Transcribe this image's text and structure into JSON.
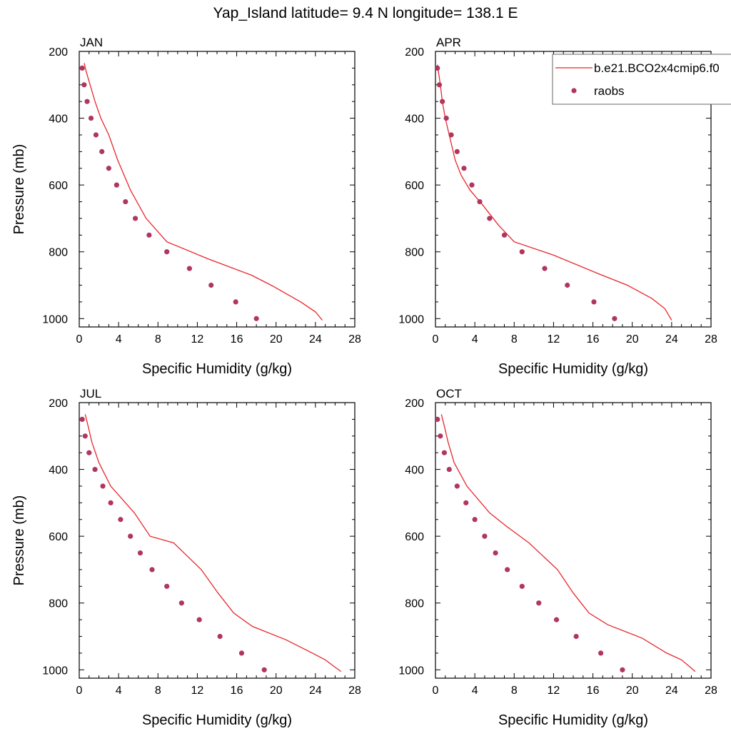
{
  "title": "Yap_Island  latitude= 9.4 N longitude= 138.1 E",
  "colors": {
    "model_line": "#e8262b",
    "obs_marker": "#b0365f",
    "axis": "#000000"
  },
  "legend": {
    "model_label": "b.e21.BCO2x4cmip6.f0",
    "obs_label": "raobs",
    "placement": "top-right"
  },
  "chart_data": [
    {
      "type": "line",
      "panel": "JAN",
      "xlabel": "Specific Humidity (g/kg)",
      "ylabel": "Pressure (mb)",
      "xlim": [
        0,
        28
      ],
      "ylim": [
        1025,
        200
      ],
      "xticks": [
        0,
        4,
        8,
        12,
        16,
        20,
        24,
        28
      ],
      "yticks": [
        200,
        400,
        600,
        800,
        1000
      ],
      "series": [
        {
          "name": "b.e21.BCO2x4cmip6.f0",
          "kind": "line",
          "x": [
            0.5,
            0.7,
            1.1,
            1.6,
            2.2,
            3.0,
            3.9,
            5.2,
            6.8,
            8.9,
            13.0,
            17.5,
            19.5,
            21.0,
            22.5,
            24.0,
            24.7
          ],
          "y": [
            235,
            260,
            300,
            350,
            400,
            450,
            525,
            615,
            700,
            770,
            820,
            870,
            900,
            925,
            950,
            980,
            1005
          ]
        },
        {
          "name": "raobs",
          "kind": "scatter",
          "x": [
            0.3,
            0.5,
            0.8,
            1.2,
            1.7,
            2.3,
            3.0,
            3.8,
            4.7,
            5.7,
            7.1,
            8.9,
            11.2,
            13.4,
            15.9,
            18.0
          ],
          "y": [
            250,
            300,
            350,
            400,
            450,
            500,
            550,
            600,
            650,
            700,
            750,
            800,
            850,
            900,
            950,
            1000
          ]
        }
      ]
    },
    {
      "type": "line",
      "panel": "APR",
      "xlabel": "Specific Humidity (g/kg)",
      "ylabel": "",
      "xlim": [
        0,
        28
      ],
      "ylim": [
        1025,
        200
      ],
      "xticks": [
        0,
        4,
        8,
        12,
        16,
        20,
        24,
        28
      ],
      "yticks": [
        200,
        400,
        600,
        800,
        1000
      ],
      "series": [
        {
          "name": "b.e21.BCO2x4cmip6.f0",
          "kind": "line",
          "x": [
            0.2,
            0.3,
            0.5,
            0.7,
            1.0,
            1.4,
            2.0,
            2.6,
            3.5,
            4.8,
            6.4,
            8.0,
            12.0,
            16.5,
            19.5,
            22.0,
            23.3,
            24.0
          ],
          "y": [
            240,
            260,
            300,
            350,
            400,
            450,
            525,
            570,
            615,
            660,
            720,
            770,
            810,
            865,
            900,
            940,
            970,
            1005
          ]
        },
        {
          "name": "raobs",
          "kind": "scatter",
          "x": [
            0.2,
            0.4,
            0.7,
            1.1,
            1.6,
            2.2,
            2.9,
            3.7,
            4.5,
            5.5,
            7.0,
            8.8,
            11.1,
            13.4,
            16.1,
            18.2
          ],
          "y": [
            250,
            300,
            350,
            400,
            450,
            500,
            550,
            600,
            650,
            700,
            750,
            800,
            850,
            900,
            950,
            1000
          ]
        }
      ]
    },
    {
      "type": "line",
      "panel": "JUL",
      "xlabel": "Specific Humidity (g/kg)",
      "ylabel": "Pressure (mb)",
      "xlim": [
        0,
        28
      ],
      "ylim": [
        1025,
        200
      ],
      "xticks": [
        0,
        4,
        8,
        12,
        16,
        20,
        24,
        28
      ],
      "yticks": [
        200,
        400,
        600,
        800,
        1000
      ],
      "series": [
        {
          "name": "b.e21.BCO2x4cmip6.f0",
          "kind": "line",
          "x": [
            0.6,
            0.9,
            1.3,
            2.0,
            3.2,
            5.6,
            7.2,
            9.6,
            12.4,
            14.1,
            15.7,
            17.6,
            21.0,
            23.7,
            25.0,
            25.9,
            26.6
          ],
          "y": [
            235,
            270,
            320,
            380,
            450,
            530,
            600,
            620,
            700,
            770,
            830,
            870,
            910,
            950,
            970,
            990,
            1005
          ]
        },
        {
          "name": "raobs",
          "kind": "scatter",
          "x": [
            0.3,
            0.6,
            1.0,
            1.6,
            2.4,
            3.2,
            4.2,
            5.2,
            6.2,
            7.4,
            8.9,
            10.4,
            12.2,
            14.3,
            16.5,
            18.8
          ],
          "y": [
            250,
            300,
            350,
            400,
            450,
            500,
            550,
            600,
            650,
            700,
            750,
            800,
            850,
            900,
            950,
            1000
          ]
        }
      ]
    },
    {
      "type": "line",
      "panel": "OCT",
      "xlabel": "Specific Humidity (g/kg)",
      "ylabel": "",
      "xlim": [
        0,
        28
      ],
      "ylim": [
        1025,
        200
      ],
      "xticks": [
        0,
        4,
        8,
        12,
        16,
        20,
        24,
        28
      ],
      "yticks": [
        200,
        400,
        600,
        800,
        1000
      ],
      "series": [
        {
          "name": "b.e21.BCO2x4cmip6.f0",
          "kind": "line",
          "x": [
            0.6,
            0.9,
            1.3,
            1.9,
            3.2,
            5.5,
            7.2,
            9.5,
            12.4,
            14.0,
            15.6,
            17.5,
            21.0,
            23.5,
            25.0,
            25.8,
            26.4
          ],
          "y": [
            235,
            270,
            320,
            380,
            450,
            530,
            570,
            620,
            700,
            770,
            830,
            865,
            905,
            950,
            970,
            990,
            1005
          ]
        },
        {
          "name": "raobs",
          "kind": "scatter",
          "x": [
            0.2,
            0.5,
            0.9,
            1.4,
            2.2,
            3.1,
            4.0,
            5.0,
            6.1,
            7.3,
            8.8,
            10.5,
            12.3,
            14.3,
            16.8,
            19.0
          ],
          "y": [
            250,
            300,
            350,
            400,
            450,
            500,
            550,
            600,
            650,
            700,
            750,
            800,
            850,
            900,
            950,
            1000
          ]
        }
      ]
    }
  ]
}
